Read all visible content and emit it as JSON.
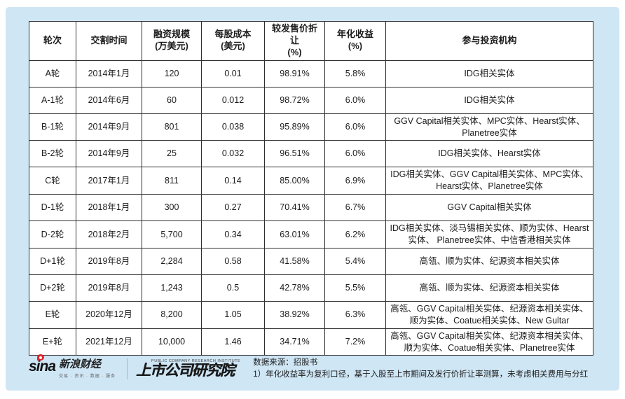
{
  "table": {
    "headers": [
      {
        "label": "轮次",
        "sub": ""
      },
      {
        "label": "交割时间",
        "sub": ""
      },
      {
        "label": "融资规模",
        "sub": "(万美元)"
      },
      {
        "label": "每股成本",
        "sub": "(美元)"
      },
      {
        "label": "较发售价折让",
        "sub": "(%)"
      },
      {
        "label": "年化收益",
        "sub": "(%)"
      },
      {
        "label": "参与投资机构",
        "sub": ""
      }
    ],
    "rows": [
      [
        "A轮",
        "2014年1月",
        "120",
        "0.01",
        "98.91%",
        "5.8%",
        "IDG相关实体"
      ],
      [
        "A-1轮",
        "2014年6月",
        "60",
        "0.012",
        "98.72%",
        "6.0%",
        "IDG相关实体"
      ],
      [
        "B-1轮",
        "2014年9月",
        "801",
        "0.038",
        "95.89%",
        "6.0%",
        "GGV Capital相关实体、MPC实体、Hearst实体、Planetree实体"
      ],
      [
        "B-2轮",
        "2014年9月",
        "25",
        "0.032",
        "96.51%",
        "6.0%",
        "IDG相关实体、Hearst实体"
      ],
      [
        "C轮",
        "2017年1月",
        "811",
        "0.14",
        "85.00%",
        "6.9%",
        "IDG相关实体、GGV Capital相关实体、MPC实体、Hearst实体、Planetree实体"
      ],
      [
        "D-1轮",
        "2018年1月",
        "300",
        "0.27",
        "70.41%",
        "6.7%",
        "GGV Capital相关实体"
      ],
      [
        "D-2轮",
        "2018年2月",
        "5,700",
        "0.34",
        "63.01%",
        "6.2%",
        "IDG相关实体、淡马锡相关实体、顺为实体、Hearst实体、 Planetree实体、中信香港相关实体"
      ],
      [
        "D+1轮",
        "2019年8月",
        "2,284",
        "0.58",
        "41.58%",
        "5.4%",
        "高瓴、顺为实体、纪源资本相关实体"
      ],
      [
        "D+2轮",
        "2019年8月",
        "1,243",
        "0.5",
        "42.78%",
        "5.5%",
        "高瓴、顺为实体、纪源资本相关实体"
      ],
      [
        "E轮",
        "2020年12月",
        "8,200",
        "1.05",
        "38.92%",
        "6.3%",
        "高瓴、GGV Capital相关实体、纪源资本相关实体、顺为实体、Coatue相关实体、New Gultar"
      ],
      [
        "E+轮",
        "2021年12月",
        "10,000",
        "1.46",
        "34.71%",
        "7.2%",
        "高瓴、GGV Capital相关实体、纪源资本相关实体、顺为实体、Coatue相关实体、Planetree实体"
      ]
    ]
  },
  "footer": {
    "sina_word": "sina",
    "sina_brand": "新浪财经",
    "sina_tagline": "交易 · 资讯 · 数据 · 服务",
    "institute_en": "PUBLIC COMPANY RESEARCH INSTITUTE",
    "institute_cn": "上市公司研究院",
    "source": "数据来源：招股书",
    "note": "1）年化收益率为复利口径，基于入股至上市期间及发行价折让率测算，未考虑相关费用与分红"
  },
  "colors": {
    "panel_bg": "#cfe6f5",
    "table_border": "#2f2f2f",
    "sina_red": "#e0262c"
  }
}
